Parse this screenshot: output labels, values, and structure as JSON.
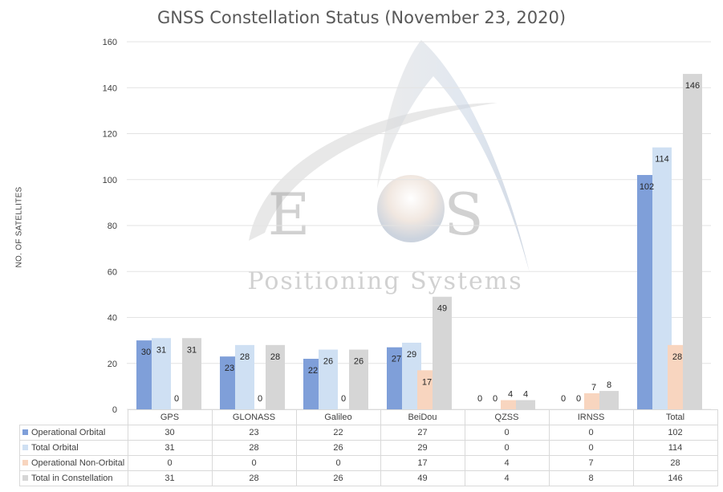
{
  "chart_data": {
    "type": "bar",
    "title": "GNSS Constellation Status (November 23, 2020)",
    "ylabel": "NO. OF SATELLITES",
    "xlabel": "",
    "ylim": [
      0,
      160
    ],
    "yticks": [
      0,
      20,
      40,
      60,
      80,
      100,
      120,
      140,
      160
    ],
    "grid": true,
    "legend": "table-below",
    "categories": [
      "GPS",
      "GLONASS",
      "Galileo",
      "BeiDou",
      "QZSS",
      "IRNSS",
      "Total"
    ],
    "series": [
      {
        "name": "Operational Orbital",
        "color": "#7f9fd9",
        "values": [
          30,
          23,
          22,
          27,
          0,
          0,
          102
        ]
      },
      {
        "name": "Total Orbital",
        "color": "#cfe0f3",
        "values": [
          31,
          28,
          26,
          29,
          0,
          0,
          114
        ]
      },
      {
        "name": "Operational Non-Orbital",
        "color": "#f8d5bf",
        "values": [
          0,
          0,
          0,
          17,
          4,
          7,
          28
        ]
      },
      {
        "name": "Total in Constellation",
        "color": "#d6d6d6",
        "values": [
          31,
          28,
          26,
          49,
          4,
          8,
          146
        ]
      }
    ]
  },
  "watermark": {
    "brand": "EOS",
    "tagline": "Positioning Systems"
  }
}
